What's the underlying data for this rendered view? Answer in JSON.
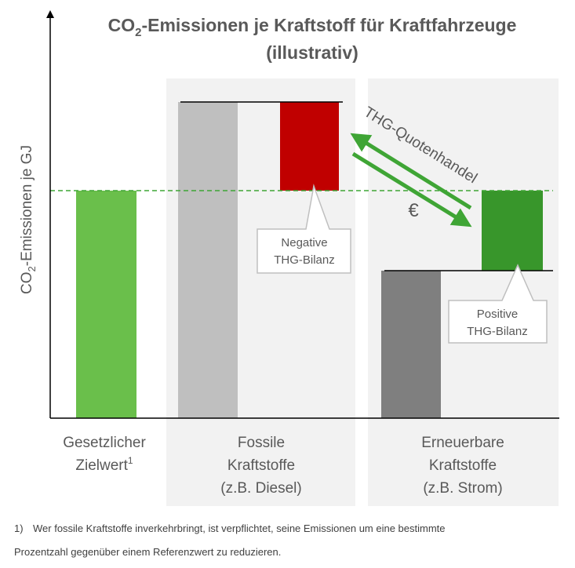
{
  "header": {
    "title": {
      "co": "CO",
      "sub": "2",
      "rest": "-Emissionen je Kraftstoff für Kraftfahrzeuge",
      "line2": "(illustrativ)"
    }
  },
  "axis": {
    "y_label": {
      "co": "CO",
      "sub": "2",
      "rest": "-Emissionen je GJ"
    }
  },
  "arrow_label": "THG-Quotenhandel",
  "currency": "€",
  "callouts": [
    {
      "line1": "Negative",
      "line2": "THG-Bilanz"
    },
    {
      "line1": "Positive",
      "line2": "THG-Bilanz"
    }
  ],
  "categories": [
    {
      "lines": [
        "Gesetzlicher",
        "Zielwert"
      ],
      "sup": "1"
    },
    {
      "lines": [
        "Fossile",
        "Kraftstoffe",
        "(z.B. Diesel)"
      ]
    },
    {
      "lines": [
        "Erneuerbare",
        "Kraftstoffe",
        "(z.B. Strom)"
      ]
    }
  ],
  "footnote": {
    "marker": "1)",
    "line1": "Wer fossile Kraftstoffe inverkehrbringt, ist verpflichtet, seine Emissionen um eine bestimmte",
    "line2": "Prozentzahl gegenüber einem Referenzwert zu reduzieren."
  }
}
